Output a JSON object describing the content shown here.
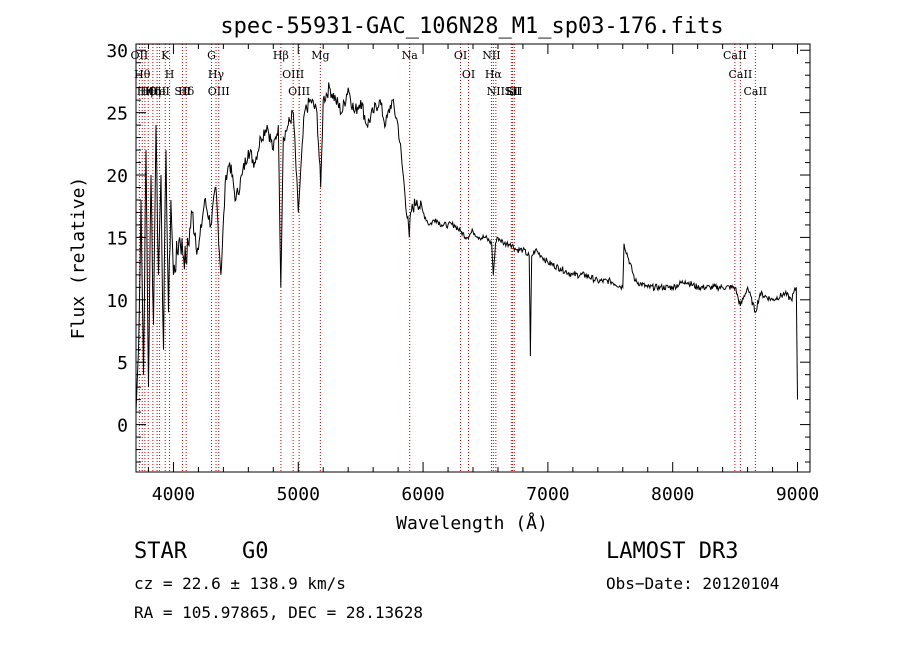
{
  "chart_data": {
    "type": "line",
    "title": "spec-55931-GAC_106N28_M1_sp03-176.fits",
    "xlabel": "Wavelength (Å)",
    "ylabel": "Flux (relative)",
    "xlim": [
      3700,
      9100
    ],
    "ylim": [
      -3.8,
      30.5
    ],
    "xticks": [
      4000,
      5000,
      6000,
      7000,
      8000,
      9000
    ],
    "xtick_labels": [
      "4000",
      "5000",
      "6000",
      "7000",
      "8000",
      "9000"
    ],
    "yticks": [
      0,
      5,
      10,
      15,
      20,
      25,
      30
    ],
    "ytick_labels": [
      "0",
      "5",
      "10",
      "15",
      "20",
      "25",
      "30"
    ],
    "series": [
      {
        "name": "flux",
        "x": [
          3700,
          3720,
          3740,
          3760,
          3780,
          3800,
          3820,
          3840,
          3860,
          3880,
          3900,
          3920,
          3940,
          3960,
          3980,
          4000,
          4050,
          4100,
          4150,
          4200,
          4250,
          4300,
          4340,
          4380,
          4420,
          4450,
          4500,
          4550,
          4600,
          4650,
          4700,
          4750,
          4800,
          4840,
          4860,
          4880,
          4920,
          4960,
          5000,
          5050,
          5100,
          5150,
          5180,
          5200,
          5250,
          5300,
          5350,
          5400,
          5450,
          5500,
          5550,
          5600,
          5650,
          5700,
          5750,
          5800,
          5850,
          5890,
          5900,
          5950,
          6000,
          6050,
          6100,
          6150,
          6200,
          6250,
          6300,
          6350,
          6400,
          6450,
          6500,
          6550,
          6563,
          6580,
          6600,
          6650,
          6700,
          6750,
          6800,
          6850,
          6860,
          6870,
          6900,
          6950,
          7000,
          7100,
          7200,
          7300,
          7400,
          7500,
          7600,
          7610,
          7700,
          7800,
          7900,
          8000,
          8100,
          8200,
          8300,
          8400,
          8500,
          8542,
          8600,
          8662,
          8700,
          8800,
          8900,
          8950,
          8990,
          9000
        ],
        "y": [
          1,
          6,
          18,
          4,
          22,
          3,
          20,
          8,
          24,
          12,
          20,
          6,
          22,
          9,
          18,
          12,
          15,
          13,
          17,
          14,
          18,
          16,
          19,
          12,
          20,
          21,
          18,
          20,
          22,
          21,
          23,
          24,
          22,
          24,
          11,
          23,
          24,
          25,
          17,
          25,
          26,
          25,
          19,
          26,
          27,
          26,
          25,
          27,
          25,
          26,
          24,
          25,
          26,
          24,
          26,
          24,
          19,
          15,
          17,
          18,
          17,
          16,
          16.5,
          16,
          16,
          16,
          15.5,
          15,
          15.5,
          15,
          15,
          14.5,
          12,
          14.5,
          15,
          14.5,
          14.5,
          14,
          14,
          13.5,
          5.5,
          13.5,
          14,
          13.5,
          13,
          12.5,
          12,
          12,
          11.5,
          11.5,
          11,
          14.5,
          11.5,
          11,
          11,
          11,
          11.5,
          11,
          11,
          11,
          11,
          9.5,
          11,
          9,
          10.5,
          10,
          10.5,
          10,
          11,
          2
        ]
      }
    ],
    "line_markers": [
      {
        "wavelength": 3727,
        "label": "OII"
      },
      {
        "wavelength": 3750,
        "label": "Hθ"
      },
      {
        "wavelength": 3771,
        "label": "Hη"
      },
      {
        "wavelength": 3798,
        "label": "Hθ"
      },
      {
        "wavelength": 3835,
        "label": "Hη"
      },
      {
        "wavelength": 3869,
        "label": "OII"
      },
      {
        "wavelength": 3889,
        "label": "HeI"
      },
      {
        "wavelength": 3934,
        "label": "K"
      },
      {
        "wavelength": 3969,
        "label": "H"
      },
      {
        "wavelength": 4072,
        "label": "SII"
      },
      {
        "wavelength": 4102,
        "label": "Hδ"
      },
      {
        "wavelength": 4305,
        "label": "G"
      },
      {
        "wavelength": 4341,
        "label": "Hγ"
      },
      {
        "wavelength": 4363,
        "label": "OIII"
      },
      {
        "wavelength": 4861,
        "label": "Hβ"
      },
      {
        "wavelength": 4959,
        "label": "OIII"
      },
      {
        "wavelength": 5007,
        "label": "OIII"
      },
      {
        "wavelength": 5177,
        "label": "Mg"
      },
      {
        "wavelength": 5893,
        "label": "Na"
      },
      {
        "wavelength": 6300,
        "label": "OI"
      },
      {
        "wavelength": 6364,
        "label": "OI"
      },
      {
        "wavelength": 6548,
        "label": "NII"
      },
      {
        "wavelength": 6563,
        "label": "Hα"
      },
      {
        "wavelength": 6583,
        "label": "NII"
      },
      {
        "wavelength": 6707,
        "label": "Li"
      },
      {
        "wavelength": 6717,
        "label": "SII"
      },
      {
        "wavelength": 6731,
        "label": "SII"
      },
      {
        "wavelength": 8498,
        "label": "CaII"
      },
      {
        "wavelength": 8542,
        "label": "CaII"
      },
      {
        "wavelength": 8662,
        "label": "CaII"
      }
    ]
  },
  "info": {
    "class": "STAR",
    "subclass": "G0",
    "survey": "LAMOST DR3",
    "cz": "cz = 22.6 ± 138.9 km/s",
    "obs_date": "Obs−Date: 20120104",
    "coords": "RA = 105.97865, DEC =  28.13628"
  },
  "colors": {
    "line": "#000000",
    "marker": "#cc0000"
  }
}
